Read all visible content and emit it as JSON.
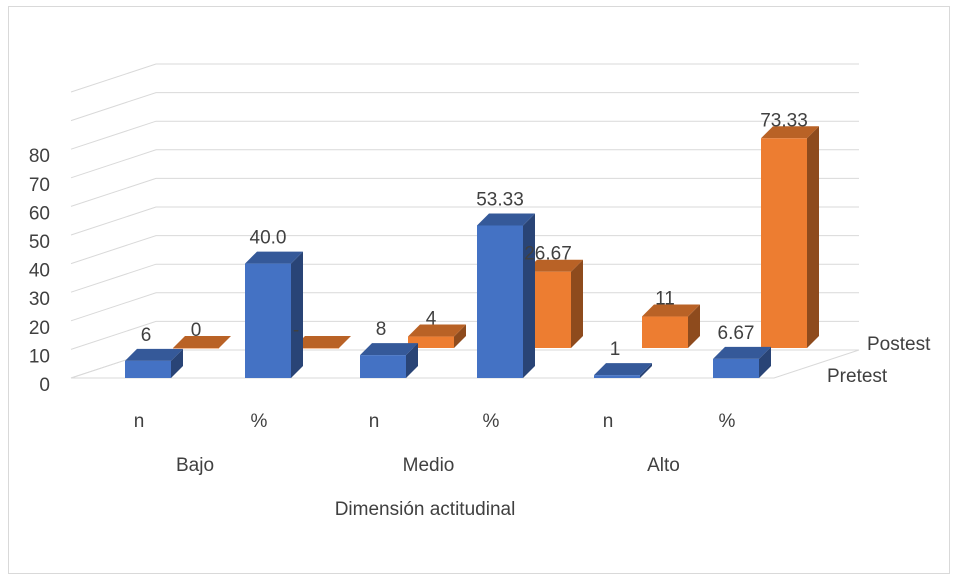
{
  "chart_data": {
    "type": "bar",
    "title": "",
    "xlabel": "Dimensión actitudinal",
    "ylabel": "",
    "ylim": [
      0,
      80
    ],
    "y_ticks": [
      0,
      10,
      20,
      30,
      40,
      50,
      60,
      70,
      80
    ],
    "groups": [
      "Bajo",
      "Medio",
      "Alto"
    ],
    "categories": [
      "n",
      "%",
      "n",
      "%",
      "n",
      "%"
    ],
    "series": [
      {
        "name": "Pretest",
        "color": "#4472C4",
        "values": [
          6,
          40.0,
          8,
          53.33,
          1,
          6.67
        ],
        "labels": [
          "6",
          "40.0",
          "8",
          "53.33",
          "1",
          "6.67"
        ]
      },
      {
        "name": "Postest",
        "color": "#ED7D31",
        "values": [
          0,
          0,
          4,
          26.67,
          11,
          73.33
        ],
        "labels": [
          "0",
          "-",
          "4",
          "26.67",
          "11",
          "73.33"
        ]
      }
    ],
    "grid": true,
    "legend": "right, as depth-axis labels"
  }
}
